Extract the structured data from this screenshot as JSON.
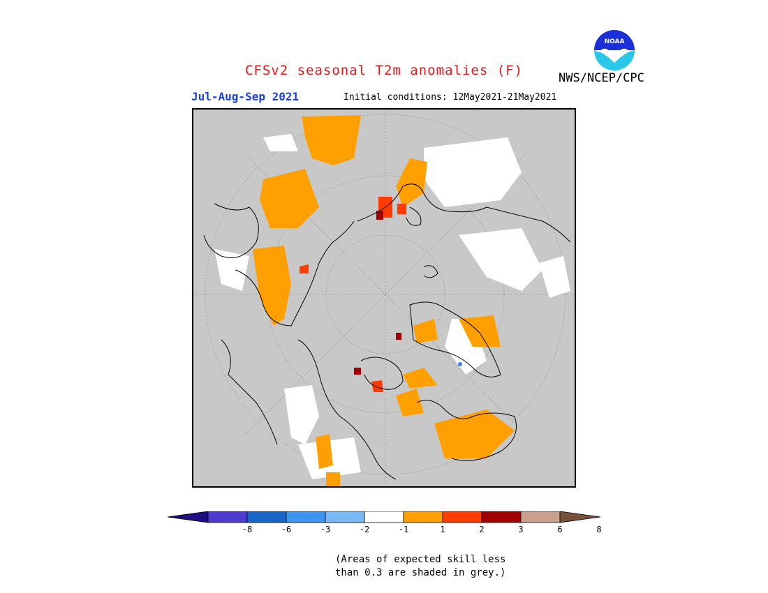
{
  "title": "CFSv2 seasonal T2m anomalies (F)",
  "agency": "NWS/NCEP/CPC",
  "logo_text": "NOAA",
  "season": "Jul-Aug-Sep 2021",
  "initial_conditions": "Initial conditions: 12May2021-21May2021",
  "colorbar": {
    "tick_labels": [
      "-8",
      "-6",
      "-3",
      "-2",
      "-1",
      "1",
      "2",
      "3",
      "6",
      "8"
    ],
    "colors": [
      "#1d0f82",
      "#4b3ccf",
      "#1a64c8",
      "#3c96f0",
      "#78b9f5",
      "#ffffff",
      "#ffa000",
      "#ff3c00",
      "#a00000",
      "#c8a08c",
      "#78503c"
    ]
  },
  "note_line1": "(Areas of expected skill less",
  "note_line2": "than 0.3 are shaded in grey.)",
  "map_colors": {
    "background": "#c8c8c8",
    "positive_1_2": "#ffa000",
    "positive_2_3": "#ff3c00",
    "positive_3_6": "#a00000",
    "neutral": "#ffffff"
  }
}
